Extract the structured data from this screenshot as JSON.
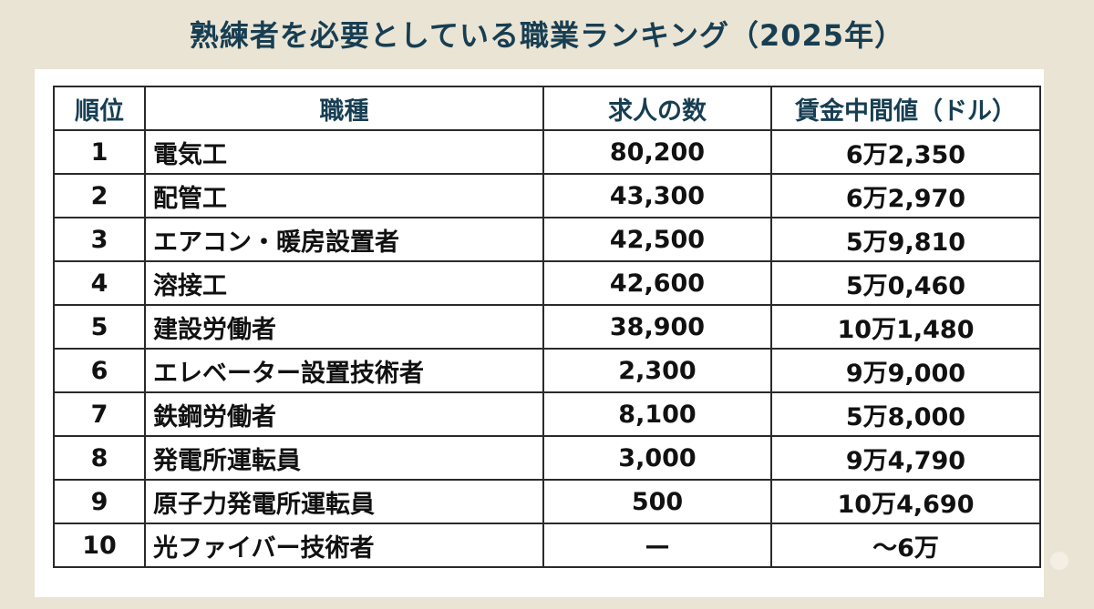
{
  "title": "熟練者を必要としている職業ランキング（2025年）",
  "table": {
    "headers": [
      "順位",
      "職種",
      "求人の数",
      "賃金中間値（ドル）"
    ],
    "rows": [
      {
        "rank": "1",
        "job": "電気工",
        "openings": "80,200",
        "wage": "6万2,350"
      },
      {
        "rank": "2",
        "job": "配管工",
        "openings": "43,300",
        "wage": "6万2,970"
      },
      {
        "rank": "3",
        "job": "エアコン・暖房設置者",
        "openings": "42,500",
        "wage": "5万9,810"
      },
      {
        "rank": "4",
        "job": "溶接工",
        "openings": "42,600",
        "wage": "5万0,460"
      },
      {
        "rank": "5",
        "job": "建設労働者",
        "openings": "38,900",
        "wage": "10万1,480"
      },
      {
        "rank": "6",
        "job": "エレベーター設置技術者",
        "openings": "2,300",
        "wage": "9万9,000"
      },
      {
        "rank": "7",
        "job": "鉄鋼労働者",
        "openings": "8,100",
        "wage": "5万8,000"
      },
      {
        "rank": "8",
        "job": "発電所運転員",
        "openings": "3,000",
        "wage": "9万4,790"
      },
      {
        "rank": "9",
        "job": "原子力発電所運転員",
        "openings": "500",
        "wage": "10万4,690"
      },
      {
        "rank": "10",
        "job": "光ファイバー技術者",
        "openings": "—",
        "wage": "〜6万"
      }
    ]
  },
  "colors": {
    "background": "#eae4d4",
    "title": "#173e52",
    "header_text": "#173e52",
    "border": "#2a2a2a"
  }
}
